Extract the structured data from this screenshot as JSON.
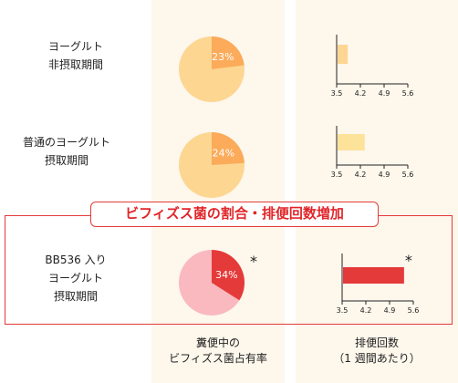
{
  "colors": {
    "column_bg": "#fdf7ec",
    "pie_base": "#fdd692",
    "pie_slice": "#fbab5a",
    "bar_normal": "#fde29a",
    "bar_short": "#fdd692",
    "highlight_red": "#e53a3a",
    "highlight_pie_base": "#f9b9be",
    "highlight_text": "#e0262a"
  },
  "banner": "ビフィズス菌の割合・排便回数増加",
  "column_captions": {
    "fecal": [
      "糞便中の",
      "ビフィズス菌占有率"
    ],
    "defecation": [
      "排便回数",
      "（1 週間あたり）"
    ]
  },
  "significance_mark": "*",
  "rows": [
    {
      "label_lines": [
        "ヨーグルト",
        "非摂取期間"
      ]
    },
    {
      "label_lines": [
        "普通のヨーグルト",
        "摂取期間"
      ]
    },
    {
      "label_lines": [
        "BB536 入り",
        "ヨーグルト",
        "摂取期間"
      ]
    }
  ],
  "chart_data": [
    {
      "type": "pie",
      "title": "",
      "series": [
        {
          "slice_percent": 23,
          "label": "23%"
        },
        {
          "slice_percent": 24,
          "label": "24%"
        },
        {
          "slice_percent": 34,
          "label": "34%",
          "significant": true
        }
      ]
    },
    {
      "type": "bar",
      "orientation": "horizontal",
      "title": "",
      "xlim": [
        3.5,
        5.6
      ],
      "ticks": [
        "3.5",
        "4.2",
        "4.9",
        "5.6"
      ],
      "values": [
        3.8,
        4.3,
        5.3
      ],
      "significant": [
        false,
        false,
        true
      ]
    }
  ]
}
